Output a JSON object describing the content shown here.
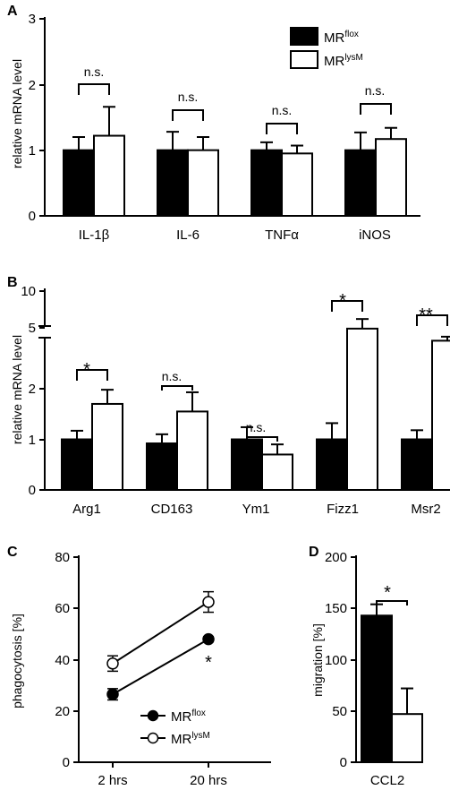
{
  "colors": {
    "control": "#000000",
    "knockout": "#ffffff",
    "stroke": "#000000"
  },
  "legend": {
    "control_base": "MR",
    "control_sup": "flox",
    "knockout_base": "MR",
    "knockout_sup": "lysM"
  },
  "chart_data": [
    {
      "panel": "A",
      "type": "bar",
      "ylabel": "relative mRNA level",
      "ylim": [
        0,
        3
      ],
      "yticks": [
        "0",
        "1",
        "2",
        "3"
      ],
      "categories": [
        "IL-1β",
        "IL-6",
        "TNFα",
        "iNOS"
      ],
      "series": [
        {
          "name": "MRflox",
          "values": [
            1.0,
            1.0,
            1.0,
            1.0
          ],
          "errors": [
            0.2,
            0.28,
            0.12,
            0.27
          ]
        },
        {
          "name": "MRlysM",
          "values": [
            1.22,
            1.0,
            0.95,
            1.17
          ],
          "errors": [
            0.44,
            0.2,
            0.12,
            0.17
          ]
        }
      ],
      "significance": [
        "n.s.",
        "n.s.",
        "n.s.",
        "n.s."
      ]
    },
    {
      "panel": "B",
      "type": "bar",
      "ylabel": "relative mRNA level",
      "ylim": [
        0,
        10
      ],
      "axis_break": [
        2.6,
        4
      ],
      "yticks_lower": [
        "0",
        "1",
        "2"
      ],
      "yticks_upper": [
        "5",
        "10"
      ],
      "categories": [
        "Arg1",
        "CD163",
        "Ym1",
        "Fizz1",
        "Msr2"
      ],
      "series": [
        {
          "name": "MRflox",
          "values": [
            1.0,
            0.92,
            1.0,
            1.0,
            1.0
          ],
          "errors": [
            0.17,
            0.18,
            0.24,
            0.32,
            0.18
          ]
        },
        {
          "name": "MRlysM",
          "values": [
            1.7,
            1.55,
            0.7,
            4.9,
            3.4
          ],
          "errors": [
            0.28,
            0.38,
            0.2,
            1.3,
            0.5
          ]
        }
      ],
      "significance": [
        "*",
        "n.s.",
        "n.s.",
        "*",
        "**"
      ]
    },
    {
      "panel": "C",
      "type": "line",
      "ylabel": "phagocytosis [%]",
      "ylim": [
        0,
        80
      ],
      "yticks": [
        "0",
        "20",
        "40",
        "60",
        "80"
      ],
      "categories": [
        "2 hrs",
        "20 hrs"
      ],
      "series": [
        {
          "name": "MRflox",
          "values": [
            26.5,
            48
          ],
          "errors": [
            2.2,
            1.0
          ]
        },
        {
          "name": "MRlysM",
          "values": [
            38.5,
            62.5
          ],
          "errors": [
            3.0,
            4.0
          ]
        }
      ],
      "significance": [
        "*",
        "*"
      ]
    },
    {
      "panel": "D",
      "type": "bar",
      "ylabel": "migration [%]",
      "ylim": [
        0,
        200
      ],
      "yticks": [
        "0",
        "50",
        "100",
        "150",
        "200"
      ],
      "categories": [
        "CCL2"
      ],
      "series": [
        {
          "name": "MRflox",
          "values": [
            143
          ],
          "errors": [
            11
          ]
        },
        {
          "name": "MRlysM",
          "values": [
            47
          ],
          "errors": [
            25
          ]
        }
      ],
      "significance": [
        "*"
      ]
    }
  ]
}
